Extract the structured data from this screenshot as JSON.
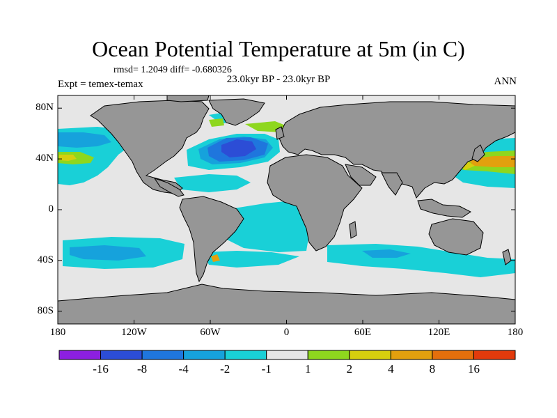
{
  "map": {
    "title": "Ocean Potential Temperature at 5m (in C)",
    "stats": "rmsd= 1.2049 diff= -0.680326",
    "experiment": "Expt = temex-temax",
    "period": "23.0kyr BP - 23.0kyr BP",
    "season": "ANN",
    "lat_labels": [
      {
        "lat": 80,
        "text": "80N"
      },
      {
        "lat": 40,
        "text": "40N"
      },
      {
        "lat": 0,
        "text": "0"
      },
      {
        "lat": -40,
        "text": "40S"
      },
      {
        "lat": -80,
        "text": "80S"
      }
    ],
    "lon_labels": [
      {
        "lon": -180,
        "text": "180"
      },
      {
        "lon": -120,
        "text": "120W"
      },
      {
        "lon": -60,
        "text": "60W"
      },
      {
        "lon": 0,
        "text": "0"
      },
      {
        "lon": 60,
        "text": "60E"
      },
      {
        "lon": 120,
        "text": "120E"
      },
      {
        "lon": 180,
        "text": "180"
      }
    ],
    "lat_range": [
      -90,
      90
    ],
    "lon_range": [
      -180,
      180
    ],
    "colors": {
      "land": "#969696",
      "ocean_neutral": "#e6e6e6",
      "coast": "#000000"
    }
  },
  "colorbar": {
    "boxes": [
      "#8c1fe0",
      "#2c4dd6",
      "#1f76dd",
      "#16a2dc",
      "#19d0d7",
      "#e6e6e6",
      "#8ed71e",
      "#d6cf0e",
      "#e2a00e",
      "#e46f0c",
      "#e23a0c"
    ],
    "labels": [
      "-16",
      "-8",
      "-4",
      "-2",
      "-1",
      "1",
      "2",
      "4",
      "8",
      "16"
    ]
  }
}
